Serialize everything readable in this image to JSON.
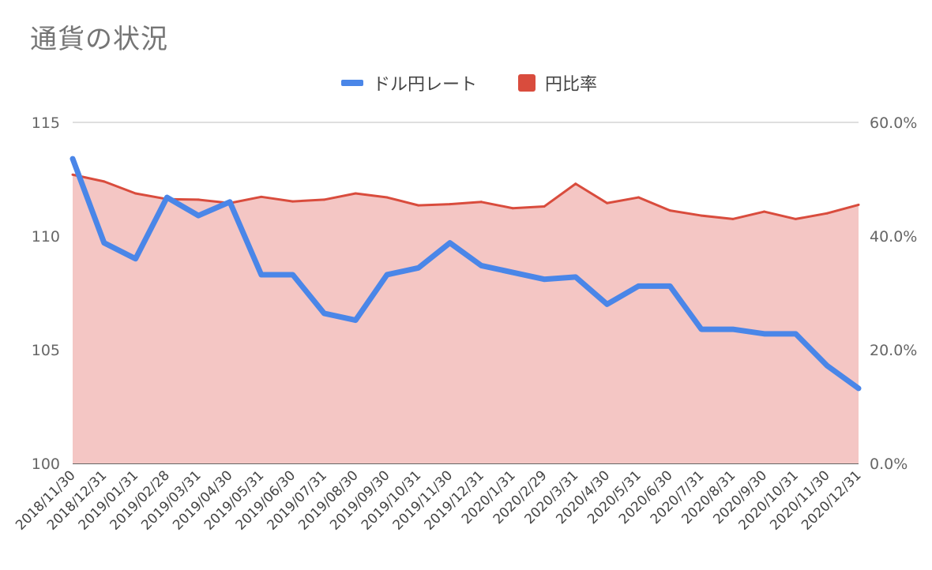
{
  "chart_data": {
    "type": "line",
    "title": "通貨の状況",
    "legend_position": "top",
    "grid": true,
    "categories": [
      "2018/11/30",
      "2018/12/31",
      "2019/01/31",
      "2019/02/28",
      "2019/03/31",
      "2019/04/30",
      "2019/05/31",
      "2019/06/30",
      "2019/07/31",
      "2019/08/30",
      "2019/09/30",
      "2019/10/31",
      "2019/11/30",
      "2019/12/31",
      "2020/1/31",
      "2020/2/29",
      "2020/3/31",
      "2020/4/30",
      "2020/5/31",
      "2020/6/30",
      "2020/7/31",
      "2020/8/31",
      "2020/9/30",
      "2020/10/31",
      "2020/11/30",
      "2020/12/31"
    ],
    "left_axis": {
      "ylim": [
        100,
        115
      ],
      "ticks": [
        "100",
        "105",
        "110",
        "115"
      ]
    },
    "right_axis": {
      "ylim": [
        0,
        60
      ],
      "ticks": [
        "0.0%",
        "20.0%",
        "40.0%",
        "60.0%"
      ]
    },
    "series": [
      {
        "name": "ドル円レート",
        "axis": "left",
        "kind": "line",
        "color": "#4a86e8",
        "values": [
          113.4,
          109.7,
          109.0,
          111.7,
          110.9,
          111.5,
          108.3,
          108.3,
          106.6,
          106.3,
          108.3,
          108.6,
          109.7,
          108.7,
          108.4,
          108.1,
          108.2,
          107.0,
          107.8,
          107.8,
          105.9,
          105.9,
          105.7,
          105.7,
          104.3,
          103.3
        ]
      },
      {
        "name": "円比率",
        "axis": "right",
        "kind": "area",
        "color": "#d94c3d",
        "fill": "#f4c6c4",
        "values": [
          50.8,
          49.6,
          47.5,
          46.5,
          46.4,
          45.8,
          46.9,
          46.1,
          46.4,
          47.5,
          46.8,
          45.4,
          45.6,
          46.0,
          44.9,
          45.2,
          49.2,
          45.8,
          46.8,
          44.5,
          43.6,
          43.0,
          44.3,
          43.0,
          44.0,
          45.5
        ]
      }
    ]
  }
}
